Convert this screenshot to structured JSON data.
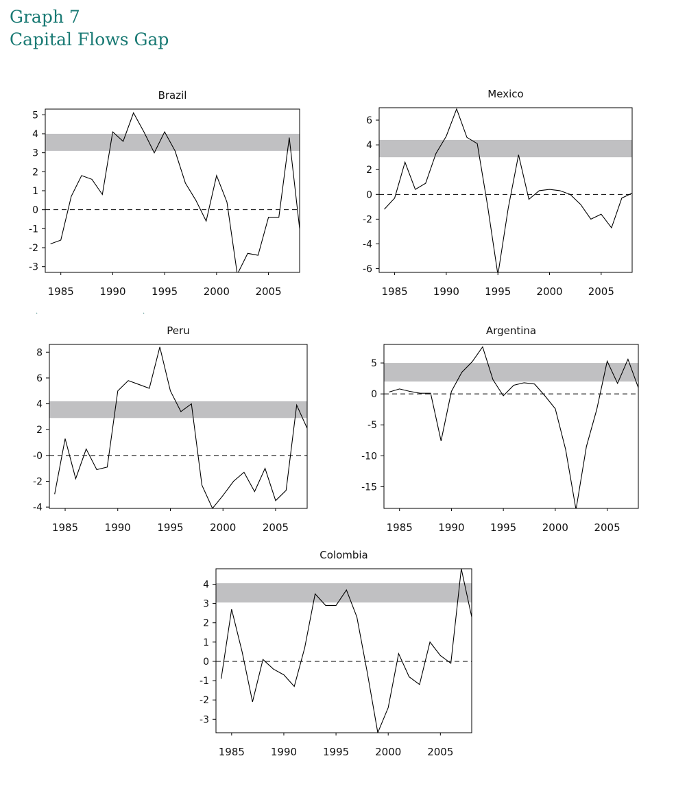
{
  "page": {
    "graph_number": "Graph 7",
    "graph_title": "Capital Flows Gap"
  },
  "colors": {
    "heading": "#1a7a74",
    "band": "#c0c0c2",
    "line": "#000000",
    "zero_line": "#000000"
  },
  "chart_data": [
    {
      "type": "line",
      "title": "Brazil",
      "x": [
        1984,
        1985,
        1986,
        1987,
        1988,
        1989,
        1990,
        1991,
        1992,
        1993,
        1994,
        1995,
        1996,
        1997,
        1998,
        1999,
        2000,
        2001,
        2002,
        2003,
        2004,
        2005,
        2006,
        2007,
        2008
      ],
      "series": [
        {
          "values": [
            -1.8,
            -1.6,
            0.7,
            1.8,
            1.6,
            0.8,
            4.1,
            3.6,
            5.1,
            4.1,
            3.0,
            4.1,
            3.1,
            1.4,
            0.5,
            -0.6,
            1.8,
            0.4,
            -3.4,
            -2.3,
            -2.4,
            -0.4,
            -0.4,
            3.8,
            -1.0
          ]
        }
      ],
      "band": [
        3.1,
        4.0
      ],
      "xlim": [
        1983.5,
        2008
      ],
      "ylim": [
        -3.3,
        5.3
      ],
      "yticks": [
        5,
        4,
        3,
        2,
        1,
        0,
        -1,
        -2,
        -3
      ],
      "ytick_labels": [
        "5",
        "4",
        "3",
        "2",
        "1",
        "0",
        "-1",
        "-2",
        "-3"
      ],
      "xticks": [
        1985,
        1990,
        1995,
        2000,
        2005
      ],
      "xtick_labels": [
        "1985",
        "1990",
        "1995",
        "2000",
        "2005"
      ],
      "zero_line": "dashed"
    },
    {
      "type": "line",
      "title": "Mexico",
      "x": [
        1984,
        1985,
        1986,
        1987,
        1988,
        1989,
        1990,
        1991,
        1992,
        1993,
        1994,
        1995,
        1996,
        1997,
        1998,
        1999,
        2000,
        2001,
        2002,
        2003,
        2004,
        2005,
        2006,
        2007,
        2008
      ],
      "series": [
        {
          "values": [
            -1.2,
            -0.3,
            2.6,
            0.4,
            0.9,
            3.3,
            4.7,
            6.9,
            4.6,
            4.1,
            -0.9,
            -6.5,
            -1.1,
            3.2,
            -0.4,
            0.3,
            0.4,
            0.3,
            0.0,
            -0.8,
            -2.0,
            -1.6,
            -2.7,
            -0.3,
            0.1
          ]
        }
      ],
      "band": [
        3.0,
        4.4
      ],
      "xlim": [
        1983.5,
        2008
      ],
      "ylim": [
        -6.3,
        7.0
      ],
      "yticks": [
        6,
        4,
        2,
        0,
        -2,
        -4,
        -6
      ],
      "ytick_labels": [
        "6",
        "4",
        "2",
        "0",
        "-2",
        "-4",
        "-6"
      ],
      "xticks": [
        1985,
        1990,
        1995,
        2000,
        2005
      ],
      "xtick_labels": [
        "1985",
        "1990",
        "1995",
        "2000",
        "2005"
      ],
      "zero_line": "dashed"
    },
    {
      "type": "line",
      "title": "Peru",
      "x": [
        1984,
        1985,
        1986,
        1987,
        1988,
        1989,
        1990,
        1991,
        1992,
        1993,
        1994,
        1995,
        1996,
        1997,
        1998,
        1999,
        2000,
        2001,
        2002,
        2003,
        2004,
        2005,
        2006,
        2007,
        2008
      ],
      "series": [
        {
          "values": [
            -3.0,
            1.3,
            -1.8,
            0.5,
            -1.1,
            -0.9,
            5.0,
            5.8,
            5.5,
            5.2,
            8.4,
            5.0,
            3.4,
            4.0,
            -2.3,
            -4.1,
            -3.1,
            -2.0,
            -1.3,
            -2.8,
            -1.0,
            -3.5,
            -2.7,
            3.9,
            2.1
          ]
        }
      ],
      "band": [
        2.9,
        4.2
      ],
      "xlim": [
        1983.5,
        2008
      ],
      "ylim": [
        -4.1,
        8.6
      ],
      "yticks": [
        8,
        6,
        4,
        2,
        0,
        -2,
        -4
      ],
      "ytick_labels": [
        "8",
        "6",
        "4",
        "2",
        "-0",
        "-2",
        "-4"
      ],
      "xticks": [
        1985,
        1990,
        1995,
        2000,
        2005
      ],
      "xtick_labels": [
        "1985",
        "1990",
        "1995",
        "2000",
        "2005"
      ],
      "zero_line": "dashed"
    },
    {
      "type": "line",
      "title": "Argentina",
      "x": [
        1984,
        1985,
        1986,
        1987,
        1988,
        1989,
        1990,
        1991,
        1992,
        1993,
        1994,
        1995,
        1996,
        1997,
        1998,
        1999,
        2000,
        2001,
        2002,
        2003,
        2004,
        2005,
        2006,
        2007,
        2008
      ],
      "series": [
        {
          "values": [
            0.3,
            0.8,
            0.4,
            0.1,
            0.1,
            -7.6,
            0.4,
            3.5,
            5.2,
            7.6,
            2.3,
            -0.3,
            1.4,
            1.8,
            1.6,
            -0.3,
            -2.4,
            -9.0,
            -18.7,
            -8.5,
            -2.5,
            5.3,
            1.7,
            5.6,
            1.0
          ]
        }
      ],
      "band": [
        2.0,
        5.0
      ],
      "xlim": [
        1983.5,
        2008
      ],
      "ylim": [
        -18.5,
        8.0
      ],
      "yticks": [
        5,
        0,
        -5,
        -10,
        -15
      ],
      "ytick_labels": [
        "5",
        "0",
        "-5",
        "-10",
        "-15"
      ],
      "xticks": [
        1985,
        1990,
        1995,
        2000,
        2005
      ],
      "xtick_labels": [
        "1985",
        "1990",
        "1995",
        "2000",
        "2005"
      ],
      "zero_line": "dashed"
    },
    {
      "type": "line",
      "title": "Colombia",
      "x": [
        1984,
        1985,
        1986,
        1987,
        1988,
        1989,
        1990,
        1991,
        1992,
        1993,
        1994,
        1995,
        1996,
        1997,
        1998,
        1999,
        2000,
        2001,
        2002,
        2003,
        2004,
        2005,
        2006,
        2007,
        2008
      ],
      "series": [
        {
          "values": [
            -0.9,
            2.7,
            0.5,
            -2.1,
            0.1,
            -0.4,
            -0.7,
            -1.3,
            0.7,
            3.5,
            2.9,
            2.9,
            3.7,
            2.3,
            -0.6,
            -3.7,
            -2.4,
            0.4,
            -0.8,
            -1.2,
            1.0,
            0.3,
            -0.1,
            4.8,
            2.3
          ]
        }
      ],
      "band": [
        3.05,
        4.05
      ],
      "xlim": [
        1983.5,
        2008
      ],
      "ylim": [
        -3.7,
        4.8
      ],
      "yticks": [
        4,
        3,
        2,
        1,
        0,
        -1,
        -2,
        -3
      ],
      "ytick_labels": [
        "4",
        "3",
        "2",
        "1",
        "0",
        "-1",
        "-2",
        "-3"
      ],
      "xticks": [
        1985,
        1990,
        1995,
        2000,
        2005
      ],
      "xtick_labels": [
        "1985",
        "1990",
        "1995",
        "2000",
        "2005"
      ],
      "zero_line": "dashed"
    }
  ]
}
